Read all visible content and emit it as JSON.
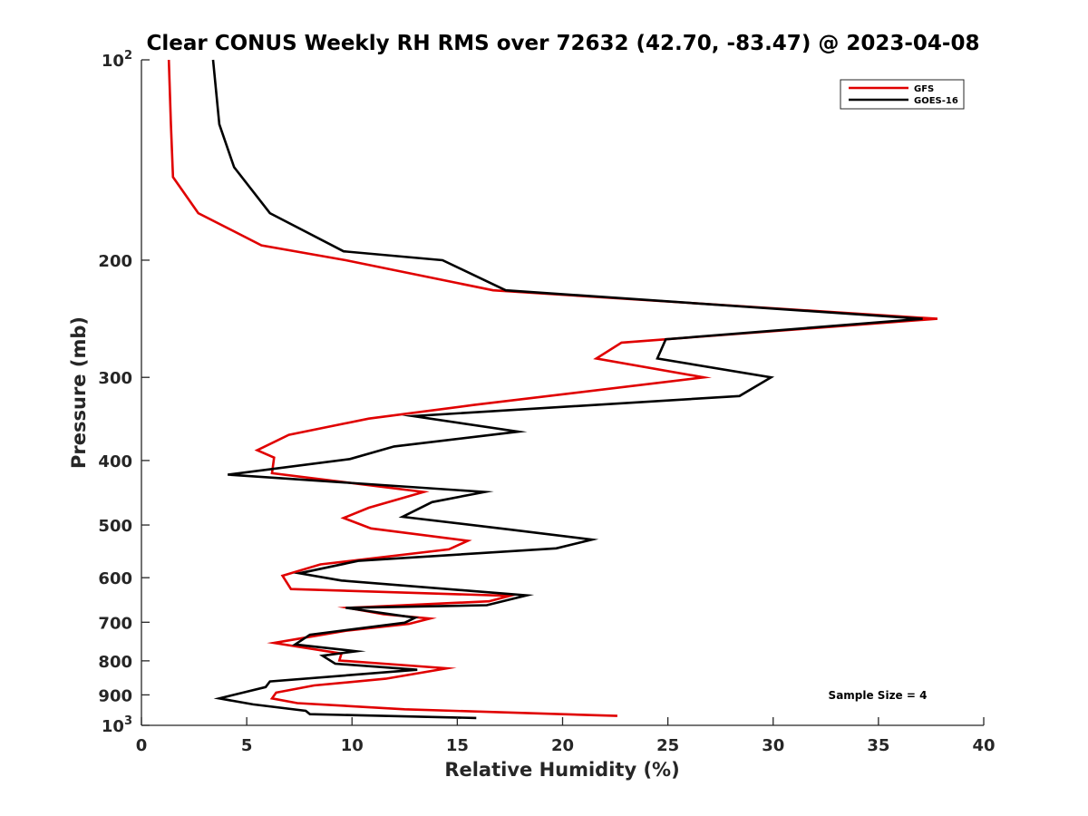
{
  "chart_data": {
    "type": "line",
    "title": "Clear CONUS Weekly RH RMS over 72632 (42.70, -83.47) @ 2023-04-08",
    "xlabel": "Relative Humidity (%)",
    "ylabel": "Pressure (mb)",
    "xlim": [
      0,
      40
    ],
    "ylim": [
      100,
      1000
    ],
    "y_scale": "log",
    "y_reversed": true,
    "grid": false,
    "legend_position": "top-right",
    "x_ticks": [
      "0",
      "5",
      "10",
      "15",
      "20",
      "25",
      "30",
      "35",
      "40"
    ],
    "y_ticks": [
      {
        "value": 100,
        "base": "10",
        "exp": "2"
      },
      {
        "value": 200,
        "label": "200"
      },
      {
        "value": 300,
        "label": "300"
      },
      {
        "value": 400,
        "label": "400"
      },
      {
        "value": 500,
        "label": "500"
      },
      {
        "value": 600,
        "label": "600"
      },
      {
        "value": 700,
        "label": "700"
      },
      {
        "value": 800,
        "label": "800"
      },
      {
        "value": 900,
        "label": "900"
      },
      {
        "value": 1000,
        "base": "10",
        "exp": "3"
      }
    ],
    "annotation": "Sample Size = 4",
    "series": [
      {
        "name": "GFS",
        "color": "#e00000",
        "points": [
          [
            1.3,
            100
          ],
          [
            1.4,
            125
          ],
          [
            1.5,
            150
          ],
          [
            2.7,
            170
          ],
          [
            5.7,
            190
          ],
          [
            9.7,
            200
          ],
          [
            16.7,
            222
          ],
          [
            37.8,
            245
          ],
          [
            22.8,
            266
          ],
          [
            21.6,
            281
          ],
          [
            26.7,
            300
          ],
          [
            15.8,
            330
          ],
          [
            10.8,
            346
          ],
          [
            7.0,
            366
          ],
          [
            5.5,
            386
          ],
          [
            6.3,
            396
          ],
          [
            6.2,
            418
          ],
          [
            13.4,
            446
          ],
          [
            10.8,
            471
          ],
          [
            9.6,
            488
          ],
          [
            10.9,
            506
          ],
          [
            15.5,
            528
          ],
          [
            14.6,
            544
          ],
          [
            8.5,
            573
          ],
          [
            6.7,
            596
          ],
          [
            7.1,
            624
          ],
          [
            17.5,
            639
          ],
          [
            16.5,
            651
          ],
          [
            9.8,
            666
          ],
          [
            11.5,
            681
          ],
          [
            13.7,
            691
          ],
          [
            12.7,
            704
          ],
          [
            9.7,
            721
          ],
          [
            6.3,
            752
          ],
          [
            9.5,
            780
          ],
          [
            9.4,
            799
          ],
          [
            14.5,
            821
          ],
          [
            11.6,
            851
          ],
          [
            8.2,
            871
          ],
          [
            6.4,
            893
          ],
          [
            6.2,
            911
          ],
          [
            7.4,
            926
          ],
          [
            12.5,
            946
          ],
          [
            22.6,
            968
          ]
        ]
      },
      {
        "name": "GOES-16",
        "color": "#000000",
        "points": [
          [
            3.4,
            100
          ],
          [
            3.7,
            125
          ],
          [
            4.4,
            145
          ],
          [
            6.1,
            170
          ],
          [
            9.6,
            194
          ],
          [
            14.3,
            200
          ],
          [
            17.3,
            222
          ],
          [
            37.1,
            245
          ],
          [
            24.9,
            263
          ],
          [
            24.5,
            281
          ],
          [
            29.9,
            300
          ],
          [
            28.4,
            320
          ],
          [
            12.9,
            343
          ],
          [
            17.9,
            362
          ],
          [
            12.0,
            381
          ],
          [
            9.9,
            398
          ],
          [
            4.1,
            420
          ],
          [
            16.3,
            446
          ],
          [
            13.8,
            462
          ],
          [
            12.4,
            486
          ],
          [
            17.5,
            508
          ],
          [
            21.4,
            526
          ],
          [
            19.7,
            542
          ],
          [
            10.3,
            566
          ],
          [
            7.5,
            591
          ],
          [
            9.5,
            606
          ],
          [
            18.3,
            638
          ],
          [
            16.4,
            660
          ],
          [
            9.7,
            666
          ],
          [
            13.0,
            689
          ],
          [
            12.5,
            701
          ],
          [
            8.0,
            731
          ],
          [
            7.3,
            756
          ],
          [
            10.2,
            774
          ],
          [
            8.6,
            786
          ],
          [
            9.2,
            808
          ],
          [
            13.1,
            825
          ],
          [
            6.1,
            859
          ],
          [
            5.9,
            876
          ],
          [
            3.7,
            911
          ],
          [
            5.3,
            930
          ],
          [
            7.8,
            951
          ],
          [
            8.0,
            962
          ],
          [
            15.9,
            975
          ]
        ]
      }
    ]
  }
}
